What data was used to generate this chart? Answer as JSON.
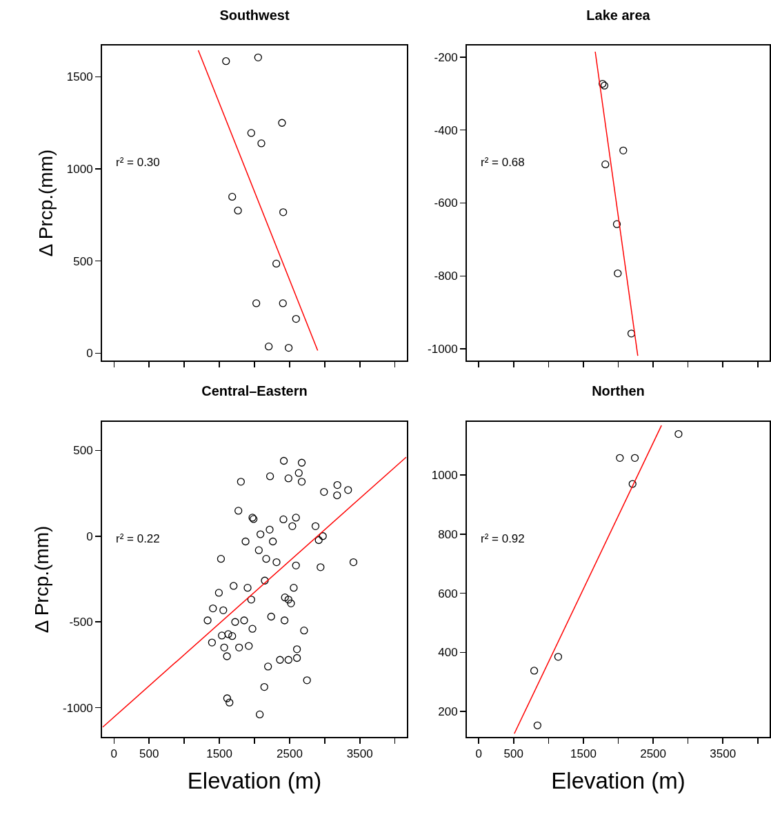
{
  "chart_data": [
    {
      "type": "scatter",
      "title": "Southwest",
      "ylabel": "Δ Prcp.(mm)",
      "xlim": [
        -170,
        4170
      ],
      "xticks": [
        0,
        500,
        {
          "value": 1000,
          "label": null
        },
        1500,
        {
          "value": 2000,
          "label": null
        },
        2500,
        {
          "value": 3000,
          "label": null
        },
        3500,
        {
          "value": 4000,
          "label": null
        }
      ],
      "ylim": [
        -40,
        1670
      ],
      "yticks": [
        0,
        500,
        1000,
        1500
      ],
      "tick_labels": "y",
      "grid": false,
      "legend": false,
      "annotations": [
        "r² = 0.30"
      ],
      "series": [
        {
          "marker": "circle",
          "color": "#000000",
          "x": [
            1595,
            2052,
            2392,
            1954,
            2098,
            1683,
            1765,
            2409,
            2311,
            2026,
            2405,
            2592,
            2203,
            2487
          ],
          "values": [
            1585,
            1605,
            1250,
            1195,
            1139,
            849,
            774,
            765,
            486,
            271,
            271,
            186,
            36,
            29
          ]
        },
        {
          "type": "line",
          "color": "#ff0000",
          "x": [
            1200,
            2900
          ],
          "values": [
            1644,
            14
          ]
        }
      ]
    },
    {
      "type": "scatter",
      "title": "Lake area",
      "xlim": [
        -170,
        4170
      ],
      "xticks": [
        0,
        500,
        {
          "value": 1000,
          "label": null
        },
        1500,
        {
          "value": 2000,
          "label": null
        },
        2500,
        {
          "value": 3000,
          "label": null
        },
        3500,
        {
          "value": 4000,
          "label": null
        }
      ],
      "ylim": [
        -1032,
        -168
      ],
      "yticks": [
        -1000,
        -800,
        -600,
        -400,
        -200
      ],
      "tick_labels": "y",
      "grid": false,
      "legend": false,
      "annotations": [
        "r² = 0.68"
      ],
      "series": [
        {
          "marker": "circle",
          "color": "#000000",
          "x": [
            1775,
            1802,
            2072,
            1815,
            1980,
            1993,
            2188
          ],
          "values": [
            -273,
            -278,
            -456,
            -494,
            -658,
            -793,
            -958
          ]
        },
        {
          "type": "line",
          "color": "#ff0000",
          "x": [
            1670,
            2280
          ],
          "values": [
            -185,
            -1019
          ]
        }
      ]
    },
    {
      "type": "scatter",
      "title": "Central–Eastern",
      "xlabel": "Elevation (m)",
      "ylabel": "Δ Prcp.(mm)",
      "xlim": [
        -170,
        4170
      ],
      "xticks": [
        0,
        500,
        {
          "value": 1000,
          "label": null
        },
        1500,
        {
          "value": 2000,
          "label": null
        },
        2500,
        {
          "value": 3000,
          "label": null
        },
        3500,
        {
          "value": 4000,
          "label": null
        }
      ],
      "ylim": [
        -1170,
        666
      ],
      "yticks": [
        -1000,
        -500,
        0,
        500
      ],
      "grid": false,
      "legend": false,
      "annotations": [
        "r² = 0.22"
      ],
      "series": [
        {
          "marker": "circle",
          "color": "#000000",
          "x": [
            2418,
            2673,
            2631,
            2222,
            2484,
            2673,
            1807,
            3180,
            2990,
            3333,
            3176,
            1771,
            1971,
            1987,
            2412,
            2591,
            2539,
            2869,
            2216,
            2085,
            2974,
            2915,
            1873,
            2262,
            2062,
            1523,
            2167,
            2314,
            3409,
            2591,
            2941,
            2147,
            1703,
            1902,
            2559,
            1493,
            1954,
            2434,
            2484,
            2520,
            1409,
            1556,
            1333,
            1725,
            1853,
            2238,
            2428,
            1971,
            2706,
            1536,
            1627,
            1683,
            1395,
            1569,
            1781,
            1919,
            2605,
            1608,
            2363,
            2484,
            2605,
            2193,
            2748,
            2140,
            1611,
            1644,
            2075
          ],
          "values": [
            439,
            428,
            368,
            349,
            337,
            317,
            317,
            298,
            258,
            269,
            238,
            148,
            108,
            100,
            98,
            108,
            58,
            58,
            38,
            11,
            0,
            -23,
            -31,
            -31,
            -82,
            -132,
            -132,
            -152,
            -152,
            -171,
            -181,
            -259,
            -290,
            -301,
            -301,
            -330,
            -370,
            -357,
            -370,
            -392,
            -421,
            -432,
            -491,
            -500,
            -491,
            -469,
            -491,
            -540,
            -550,
            -579,
            -571,
            -582,
            -620,
            -649,
            -649,
            -640,
            -659,
            -700,
            -721,
            -721,
            -710,
            -760,
            -840,
            -879,
            -945,
            -970,
            -1039
          ]
        },
        {
          "type": "line",
          "color": "#ff0000",
          "x": [
            -160,
            4160
          ],
          "values": [
            -1113,
            460
          ]
        }
      ]
    },
    {
      "type": "scatter",
      "title": "Northen",
      "xlabel": "Elevation (m)",
      "xlim": [
        -170,
        4170
      ],
      "xticks": [
        0,
        500,
        {
          "value": 1000,
          "label": null
        },
        1500,
        {
          "value": 2000,
          "label": null
        },
        2500,
        {
          "value": 3000,
          "label": null
        },
        3500,
        {
          "value": 4000,
          "label": null
        }
      ],
      "ylim": [
        114,
        1180
      ],
      "yticks": [
        200,
        400,
        600,
        800,
        1000
      ],
      "grid": false,
      "legend": false,
      "annotations": [
        "r² = 0.92"
      ],
      "series": [
        {
          "marker": "circle",
          "color": "#000000",
          "x": [
            2864,
            2023,
            2238,
            2205,
            1139,
            795,
            842
          ],
          "values": [
            1139,
            1058,
            1058,
            970,
            385,
            338,
            153
          ]
        },
        {
          "type": "line",
          "color": "#ff0000",
          "x": [
            510,
            2620
          ],
          "values": [
            125,
            1168
          ]
        }
      ]
    }
  ]
}
